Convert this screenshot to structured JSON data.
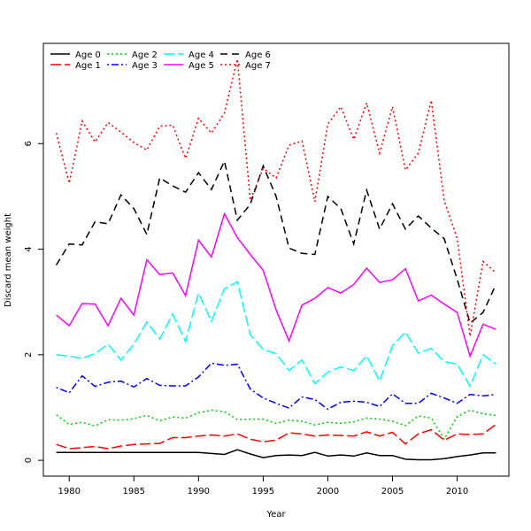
{
  "chart_data": {
    "type": "line",
    "title": "",
    "xlabel": "Year",
    "ylabel": "Discard mean weight",
    "xlim": [
      1978,
      2014
    ],
    "ylim": [
      -0.3,
      7.9
    ],
    "xticks": [
      1980,
      1985,
      1990,
      1995,
      2000,
      2005,
      2010
    ],
    "yticks": [
      0,
      2,
      4,
      6
    ],
    "grid": false,
    "legend_position": "top-left",
    "x": [
      1979,
      1980,
      1981,
      1982,
      1983,
      1984,
      1985,
      1986,
      1987,
      1988,
      1989,
      1990,
      1991,
      1992,
      1993,
      1994,
      1995,
      1996,
      1997,
      1998,
      1999,
      2000,
      2001,
      2002,
      2003,
      2004,
      2005,
      2006,
      2007,
      2008,
      2009,
      2010,
      2011,
      2012,
      2013
    ],
    "series": [
      {
        "name": "Age 0",
        "color": "#000000",
        "dash": "solid",
        "values": [
          0.15,
          0.15,
          0.15,
          0.15,
          0.15,
          0.15,
          0.15,
          0.15,
          0.15,
          0.15,
          0.15,
          0.15,
          0.13,
          0.11,
          0.2,
          0.12,
          0.05,
          0.09,
          0.1,
          0.09,
          0.15,
          0.08,
          0.1,
          0.08,
          0.14,
          0.09,
          0.09,
          0.02,
          0.01,
          0.01,
          0.03,
          0.07,
          0.1,
          0.14,
          0.14
        ]
      },
      {
        "name": "Age 1",
        "color": "#ff0000",
        "dash": "longdash",
        "values": [
          0.3,
          0.22,
          0.24,
          0.26,
          0.22,
          0.27,
          0.3,
          0.31,
          0.32,
          0.43,
          0.43,
          0.46,
          0.48,
          0.46,
          0.5,
          0.4,
          0.35,
          0.38,
          0.52,
          0.5,
          0.46,
          0.48,
          0.47,
          0.46,
          0.54,
          0.46,
          0.53,
          0.31,
          0.5,
          0.58,
          0.38,
          0.5,
          0.49,
          0.5,
          0.68
        ]
      },
      {
        "name": "Age 2",
        "color": "#00cd00",
        "dash": "dotted",
        "values": [
          0.86,
          0.68,
          0.72,
          0.65,
          0.77,
          0.76,
          0.79,
          0.85,
          0.75,
          0.82,
          0.8,
          0.9,
          0.95,
          0.92,
          0.77,
          0.78,
          0.78,
          0.7,
          0.76,
          0.74,
          0.67,
          0.72,
          0.7,
          0.73,
          0.8,
          0.78,
          0.74,
          0.66,
          0.84,
          0.8,
          0.4,
          0.83,
          0.95,
          0.88,
          0.85
        ]
      },
      {
        "name": "Age 3",
        "color": "#0000ff",
        "dash": "dotdash",
        "values": [
          1.38,
          1.28,
          1.6,
          1.4,
          1.48,
          1.5,
          1.39,
          1.55,
          1.42,
          1.41,
          1.41,
          1.58,
          1.84,
          1.8,
          1.82,
          1.35,
          1.18,
          1.08,
          0.99,
          1.2,
          1.15,
          0.97,
          1.1,
          1.12,
          1.1,
          1.02,
          1.26,
          1.08,
          1.08,
          1.27,
          1.18,
          1.08,
          1.25,
          1.22,
          1.25
        ]
      },
      {
        "name": "Age 4",
        "color": "#00ffff",
        "dash": "longdash",
        "values": [
          2.0,
          1.97,
          1.93,
          2.02,
          2.2,
          1.9,
          2.2,
          2.62,
          2.3,
          2.77,
          2.25,
          3.17,
          2.63,
          3.25,
          3.38,
          2.38,
          2.1,
          2.02,
          1.7,
          1.9,
          1.45,
          1.67,
          1.77,
          1.7,
          1.98,
          1.5,
          2.17,
          2.43,
          2.03,
          2.12,
          1.87,
          1.82,
          1.4,
          2.0,
          1.82
        ]
      },
      {
        "name": "Age 5",
        "color": "#ff00ff",
        "dash": "solid",
        "values": [
          2.75,
          2.55,
          2.97,
          2.96,
          2.55,
          3.07,
          2.75,
          3.8,
          3.52,
          3.55,
          3.12,
          4.17,
          3.85,
          4.67,
          4.22,
          3.9,
          3.6,
          2.85,
          2.26,
          2.94,
          3.07,
          3.27,
          3.17,
          3.33,
          3.64,
          3.37,
          3.42,
          3.63,
          3.02,
          3.13,
          2.96,
          2.8,
          1.97,
          2.58,
          2.48
        ]
      },
      {
        "name": "Age 6",
        "color": "#000000",
        "dash": "dashed",
        "values": [
          3.7,
          4.1,
          4.08,
          4.52,
          4.48,
          5.03,
          4.77,
          4.28,
          5.35,
          5.2,
          5.08,
          5.45,
          5.13,
          5.67,
          4.55,
          4.85,
          5.58,
          5.0,
          4.02,
          3.92,
          3.9,
          5.0,
          4.77,
          4.1,
          5.12,
          4.38,
          4.86,
          4.38,
          4.63,
          4.4,
          4.2,
          3.43,
          2.6,
          2.8,
          3.33
        ]
      },
      {
        "name": "Age 7",
        "color": "#ff0000",
        "dash": "dotted",
        "values": [
          6.2,
          5.25,
          6.43,
          6.03,
          6.4,
          6.22,
          6.02,
          5.88,
          6.33,
          6.35,
          5.72,
          6.48,
          6.2,
          6.58,
          7.6,
          4.93,
          5.53,
          5.35,
          5.97,
          6.05,
          4.9,
          6.37,
          6.7,
          6.08,
          6.77,
          5.82,
          6.7,
          5.5,
          5.82,
          6.82,
          4.92,
          4.2,
          2.35,
          3.77,
          3.55
        ]
      }
    ]
  }
}
